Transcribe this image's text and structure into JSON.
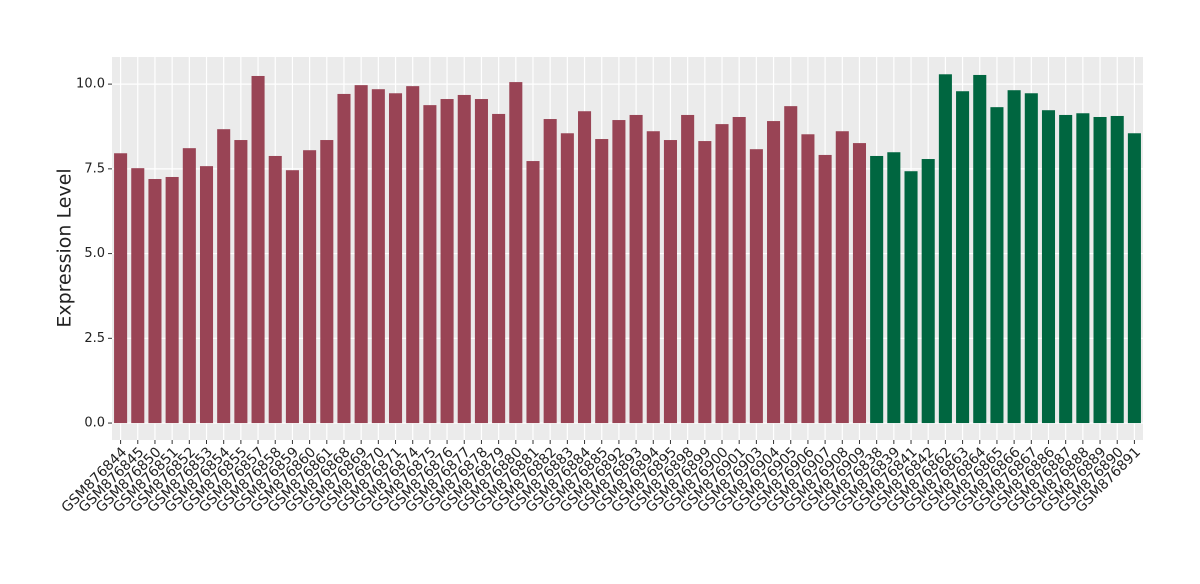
{
  "chart_data": {
    "type": "bar",
    "y_label": "Expression Level",
    "categories": [
      "GSM876844",
      "GSM876845",
      "GSM876850",
      "GSM876851",
      "GSM876852",
      "GSM876853",
      "GSM876854",
      "GSM876855",
      "GSM876857",
      "GSM876858",
      "GSM876859",
      "GSM876860",
      "GSM876861",
      "GSM876868",
      "GSM876869",
      "GSM876870",
      "GSM876871",
      "GSM876874",
      "GSM876875",
      "GSM876876",
      "GSM876877",
      "GSM876878",
      "GSM876879",
      "GSM876880",
      "GSM876881",
      "GSM876882",
      "GSM876883",
      "GSM876884",
      "GSM876885",
      "GSM876892",
      "GSM876893",
      "GSM876894",
      "GSM876895",
      "GSM876898",
      "GSM876899",
      "GSM876900",
      "GSM876901",
      "GSM876903",
      "GSM876904",
      "GSM876905",
      "GSM876906",
      "GSM876907",
      "GSM876908",
      "GSM876909",
      "GSM876838",
      "GSM876839",
      "GSM876841",
      "GSM876842",
      "GSM876862",
      "GSM876863",
      "GSM876864",
      "GSM876865",
      "GSM876866",
      "GSM876867",
      "GSM876886",
      "GSM876887",
      "GSM876888",
      "GSM876889",
      "GSM876890",
      "GSM876891"
    ],
    "values": [
      7.96,
      7.52,
      7.2,
      7.26,
      8.11,
      7.58,
      8.67,
      8.35,
      10.24,
      7.88,
      7.46,
      8.05,
      8.35,
      9.71,
      9.97,
      9.85,
      9.73,
      9.94,
      9.38,
      9.56,
      9.68,
      9.56,
      9.12,
      10.06,
      7.73,
      8.97,
      8.55,
      9.2,
      8.38,
      8.94,
      9.09,
      8.61,
      8.35,
      9.09,
      8.32,
      8.82,
      9.03,
      8.08,
      8.91,
      9.35,
      8.52,
      7.91,
      8.61,
      8.26,
      7.88,
      7.99,
      7.43,
      7.79,
      10.29,
      9.79,
      10.27,
      9.32,
      9.82,
      9.73,
      9.23,
      9.09,
      9.14,
      9.03,
      9.06,
      8.55
    ],
    "colors": [
      "#994455",
      "#994455",
      "#994455",
      "#994455",
      "#994455",
      "#994455",
      "#994455",
      "#994455",
      "#994455",
      "#994455",
      "#994455",
      "#994455",
      "#994455",
      "#994455",
      "#994455",
      "#994455",
      "#994455",
      "#994455",
      "#994455",
      "#994455",
      "#994455",
      "#994455",
      "#994455",
      "#994455",
      "#994455",
      "#994455",
      "#994455",
      "#994455",
      "#994455",
      "#994455",
      "#994455",
      "#994455",
      "#994455",
      "#994455",
      "#994455",
      "#994455",
      "#994455",
      "#994455",
      "#994455",
      "#994455",
      "#994455",
      "#994455",
      "#994455",
      "#994455",
      "#006640",
      "#006640",
      "#006640",
      "#006640",
      "#006640",
      "#006640",
      "#006640",
      "#006640",
      "#006640",
      "#006640",
      "#006640",
      "#006640",
      "#006640",
      "#006640",
      "#006640",
      "#006640"
    ],
    "ylim": [
      -0.5,
      10.8
    ],
    "yticks": [
      {
        "value": 0,
        "label": "0.0"
      },
      {
        "value": 2.5,
        "label": "2.5"
      },
      {
        "value": 5,
        "label": "5.0"
      },
      {
        "value": 7.5,
        "label": "7.5"
      },
      {
        "value": 10,
        "label": "10.0"
      }
    ],
    "grid": true
  }
}
